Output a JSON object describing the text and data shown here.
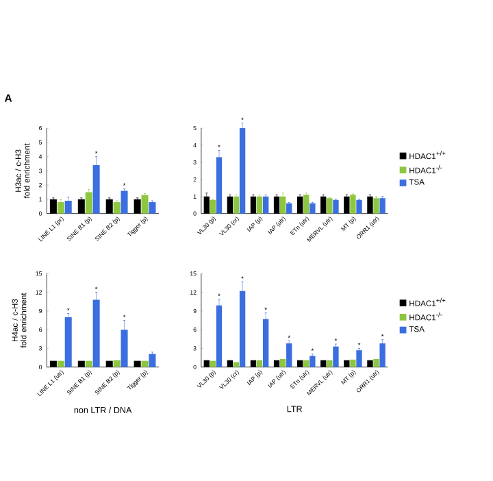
{
  "chart_data": [
    {
      "type": "bar",
      "ylabel": "H3ac / c-H3 fold enrichment",
      "annotations": [
        "A"
      ],
      "categories": [
        "LINE L1 (pr)",
        "SINE B1 (p)",
        "SINE B2 (p)",
        "Tigger (p)"
      ],
      "ylim": [
        0,
        6
      ],
      "yticks": [
        0,
        1,
        2,
        3,
        4,
        5,
        6
      ],
      "series": [
        {
          "color": "#000000",
          "values": [
            1,
            1,
            1,
            1
          ],
          "errors": [
            0.1,
            0.1,
            0.1,
            0.1
          ]
        },
        {
          "color": "#8dc63f",
          "values": [
            0.8,
            1.5,
            0.8,
            1.3
          ],
          "errors": [
            0.2,
            0.2,
            0.1,
            0.1
          ]
        },
        {
          "color": "#3b6fe0",
          "values": [
            0.9,
            3.4,
            1.6,
            0.8
          ],
          "errors": [
            0.25,
            0.6,
            0.15,
            0.1
          ],
          "value_labels": [
            null,
            "*",
            "*",
            null
          ]
        }
      ]
    },
    {
      "type": "bar",
      "legend": "right",
      "categories": [
        "VL30 (p)",
        "VL30 (cr)",
        "IAP (p)",
        "IAP (utr)",
        "ETn (utr)",
        "MERVL (utr)",
        "MT (p)",
        "ORR1 (utr)"
      ],
      "ylim": [
        0,
        5
      ],
      "yticks": [
        0,
        1,
        2,
        3,
        4,
        5
      ],
      "series": [
        {
          "name": "HDAC1$^{+/+}$",
          "color": "#000000",
          "values": [
            1,
            1,
            1,
            1,
            1,
            1,
            1,
            1
          ],
          "errors": [
            0.2,
            0.1,
            0.1,
            0.1,
            0.1,
            0.1,
            0.1,
            0.1
          ]
        },
        {
          "name": "HDAC1$^{-/-}$",
          "color": "#8dc63f",
          "values": [
            0.8,
            1,
            1,
            1,
            1.1,
            0.9,
            1.1,
            0.9
          ],
          "errors": [
            0.05,
            0.1,
            0.1,
            0.2,
            0.1,
            0.05,
            0.05,
            0.1
          ]
        },
        {
          "name": "TSA",
          "color": "#3b6fe0",
          "values": [
            3.3,
            5,
            1,
            0.6,
            0.6,
            0.8,
            0.8,
            0.9
          ],
          "errors": [
            0.4,
            0.3,
            0.1,
            0.05,
            0.05,
            0.05,
            0.05,
            0.1
          ],
          "value_labels": [
            "*",
            "*",
            null,
            null,
            null,
            null,
            null,
            null
          ]
        }
      ]
    },
    {
      "type": "bar",
      "ylabel": "H4ac / c-H3 fold enrichment",
      "xlabel": "non LTR / DNA",
      "categories": [
        "LINE L1 (utr)",
        "SINE B1 (p)",
        "SINE B2 (p)",
        "Tigger (p)"
      ],
      "ylim": [
        0,
        15
      ],
      "yticks": [
        0,
        3,
        6,
        9,
        12,
        15
      ],
      "series": [
        {
          "color": "#000000",
          "values": [
            1,
            1,
            1,
            1
          ]
        },
        {
          "color": "#8dc63f",
          "values": [
            1,
            1,
            1.1,
            1
          ]
        },
        {
          "color": "#3b6fe0",
          "values": [
            8,
            10.8,
            6,
            2.1
          ],
          "errors": [
            0.6,
            1.2,
            1.5,
            0.3
          ],
          "value_labels": [
            "*",
            "*",
            "*",
            null
          ]
        }
      ]
    },
    {
      "type": "bar",
      "legend": "right",
      "xlabel": "LTR",
      "categories": [
        "VL30 (p)",
        "VL30 (cr)",
        "IAP (p)",
        "IAP (utr)",
        "ETn (utr)",
        "MERVL (utr)",
        "MT (p)",
        "ORR1 (utr)"
      ],
      "ylim": [
        0,
        15
      ],
      "yticks": [
        0,
        3,
        6,
        9,
        12,
        15
      ],
      "series": [
        {
          "name": "HDAC1$^{+/+}$",
          "color": "#000000",
          "values": [
            1.1,
            1.1,
            1.1,
            1.1,
            1.1,
            1.1,
            1.1,
            1.1
          ]
        },
        {
          "name": "HDAC1$^{-/-}$",
          "color": "#8dc63f",
          "values": [
            1,
            0.8,
            1.1,
            1.3,
            1.1,
            1.1,
            1.2,
            1.3
          ]
        },
        {
          "name": "TSA",
          "color": "#3b6fe0",
          "values": [
            9.9,
            12.2,
            7.7,
            3.8,
            1.8,
            3.3,
            2.7,
            3.8
          ],
          "errors": [
            1,
            1.5,
            1,
            0.4,
            0.3,
            0.4,
            0.3,
            0.6
          ],
          "value_labels": [
            "*",
            "*",
            "*",
            "*",
            "*",
            "*",
            "*",
            "*"
          ]
        }
      ]
    }
  ]
}
